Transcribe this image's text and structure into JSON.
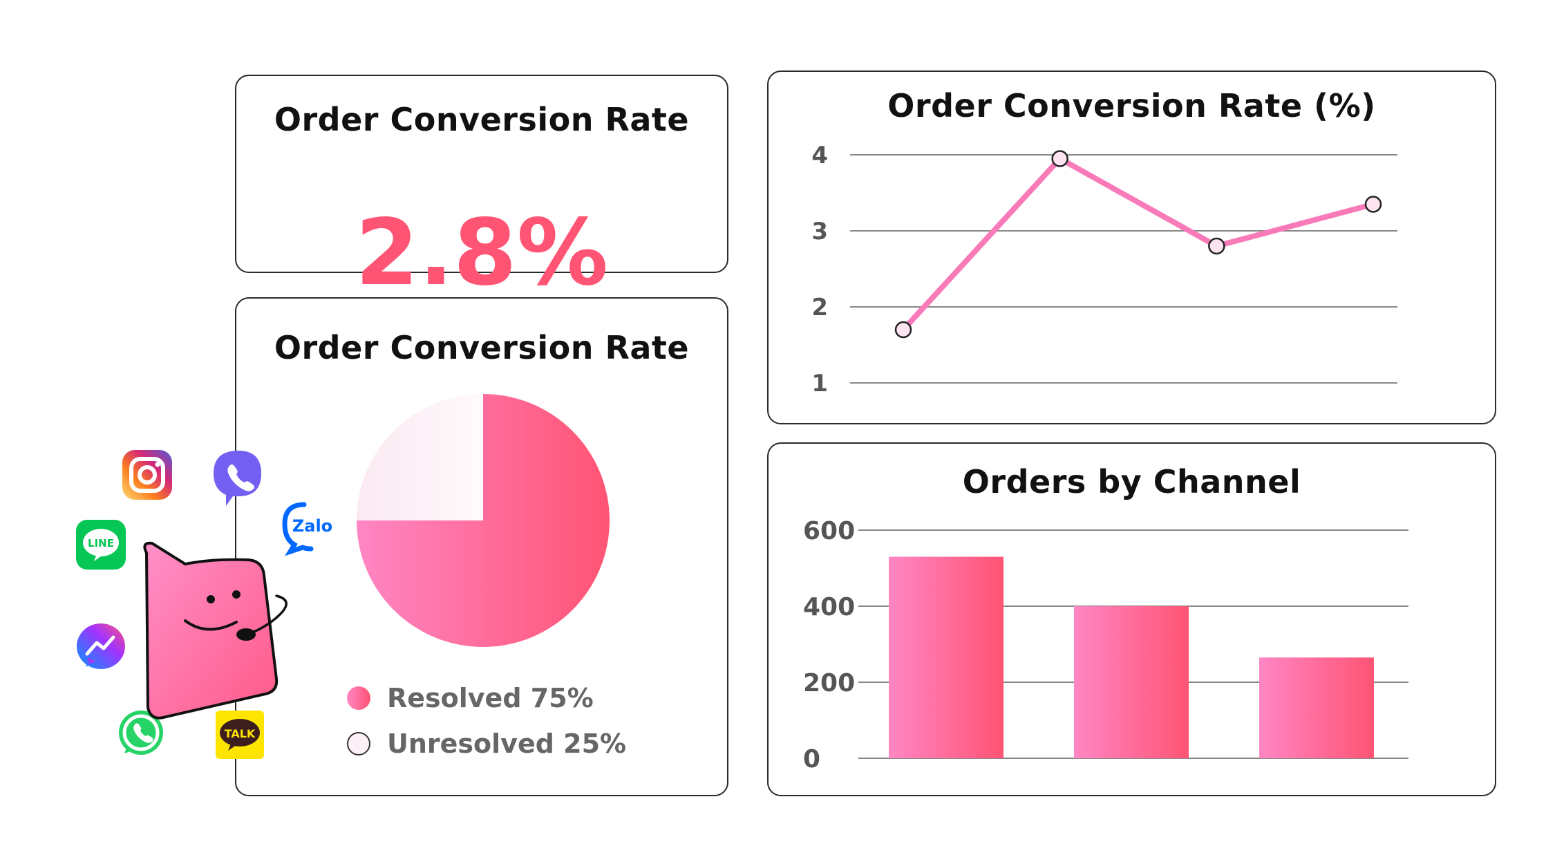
{
  "kpi": {
    "title": "Order Conversion Rate",
    "value": "2.8%"
  },
  "pie": {
    "title": "Order Conversion Rate",
    "chart_data": {
      "type": "pie",
      "title": "Order Conversion Rate",
      "slices": [
        {
          "label": "Resolved 75%",
          "value": 75
        },
        {
          "label": "Unresolved 25%",
          "value": 25
        }
      ]
    }
  },
  "line": {
    "title": "Order Conversion Rate (%)",
    "chart_data": {
      "type": "line",
      "title": "Order Conversion Rate (%)",
      "x": [
        1,
        2,
        3,
        4
      ],
      "values": [
        1.7,
        3.95,
        2.8,
        3.35
      ],
      "ylim": [
        1,
        4
      ],
      "yticks": [
        "1",
        "2",
        "3",
        "4"
      ],
      "xlabel": "",
      "ylabel": ""
    }
  },
  "bar": {
    "title": "Orders by Channel",
    "chart_data": {
      "type": "bar",
      "title": "Orders by Channel",
      "categories": [
        "",
        "",
        ""
      ],
      "values": [
        530,
        400,
        265
      ],
      "ylim": [
        0,
        600
      ],
      "yticks": [
        "0",
        "200",
        "400",
        "600"
      ],
      "xlabel": "",
      "ylabel": ""
    }
  },
  "channels": {
    "line_label": "LINE",
    "zalo_label": "Zalo",
    "kakao_label": "TALK"
  },
  "colors": {
    "accent": "#ff5474",
    "pink_light": "#ff86c4",
    "pink_line": "#f97ab8",
    "unresolved": "#fdf0f7"
  }
}
